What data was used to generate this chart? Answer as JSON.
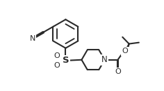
{
  "bg_color": "#ffffff",
  "line_color": "#2a2a2a",
  "lw": 1.5,
  "figsize": [
    2.36,
    1.32
  ],
  "dpi": 100,
  "xlim": [
    -1.0,
    9.5
  ],
  "ylim": [
    -1.2,
    5.8
  ]
}
